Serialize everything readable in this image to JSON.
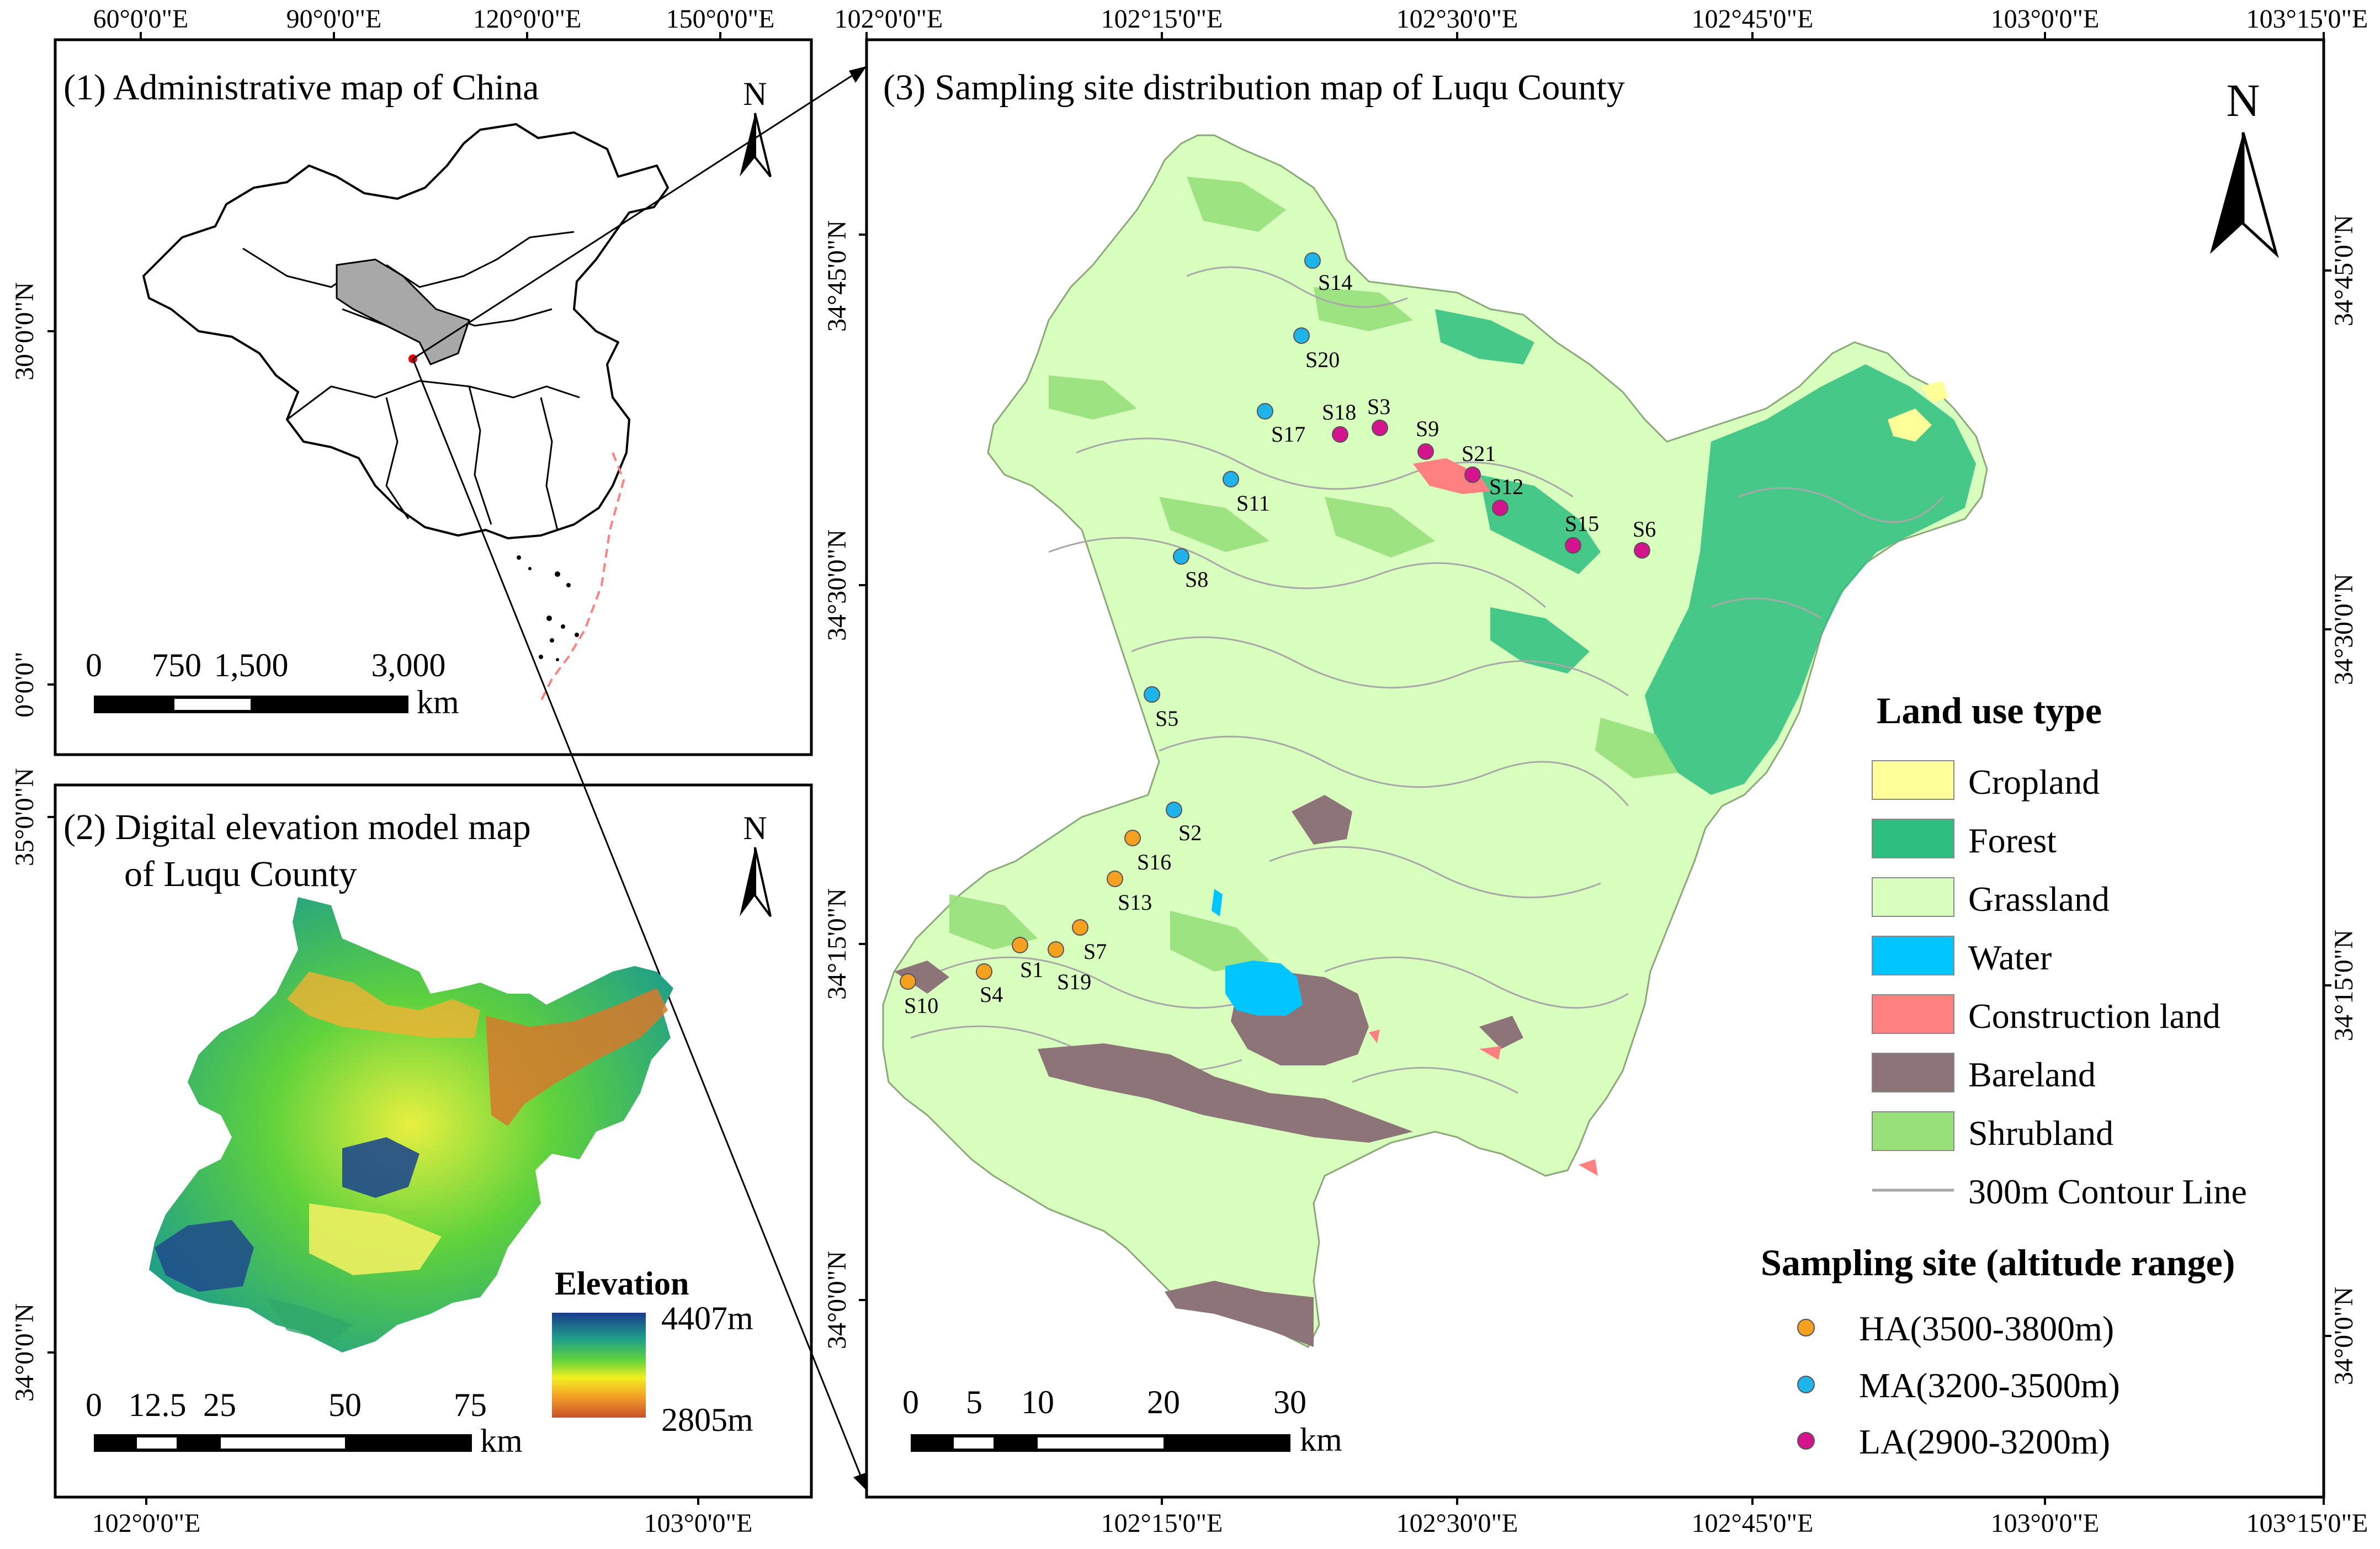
{
  "panel1": {
    "title": "(1) Administrative map of China",
    "top_ticks": [
      "60°0'0\"E",
      "90°0'0\"E",
      "120°0'0\"E",
      "150°0'0\"E"
    ],
    "left_ticks": [
      "30°0'0\"N",
      "0°0'0\""
    ],
    "north": "N",
    "scale_labels": [
      "0",
      "750",
      "1,500",
      "3,000"
    ],
    "scale_unit": "km"
  },
  "panel2": {
    "title_line1": "(2) Digital elevation model map",
    "title_line2": "of Luqu County",
    "left_ticks": [
      "35°0'0\"N",
      "34°0'0\"N"
    ],
    "bottom_ticks": [
      "102°0'0\"E",
      "103°0'0\"E"
    ],
    "north": "N",
    "legend_title": "Elevation",
    "legend_max": "4407m",
    "legend_min": "2805m",
    "scale_labels": [
      "0",
      "12.5",
      "25",
      "50",
      "75"
    ],
    "scale_unit": "km"
  },
  "panel3": {
    "title": "(3) Sampling site distribution map of Luqu County",
    "top_ticks": [
      "102°0'0\"E",
      "102°15'0\"E",
      "102°30'0\"E",
      "102°45'0\"E",
      "103°0'0\"E",
      "103°15'0\"E"
    ],
    "bottom_ticks": [
      "102°15'0\"E",
      "102°30'0\"E",
      "102°45'0\"E",
      "103°0'0\"E",
      "103°15'0\"E"
    ],
    "left_ticks": [
      "34°45'0\"N",
      "34°30'0\"N",
      "34°15'0\"N",
      "34°0'0\"N"
    ],
    "right_ticks": [
      "34°45'0\"N",
      "34°30'0\"N",
      "34°15'0\"N",
      "34°0'0\"N"
    ],
    "north": "N",
    "scale_labels": [
      "0",
      "5",
      "10",
      "20",
      "30"
    ],
    "scale_unit": "km"
  },
  "land_use_legend": {
    "title": "Land use type",
    "items": [
      {
        "label": "Cropland",
        "color": "#ffff99"
      },
      {
        "label": "Forest",
        "color": "#2dbf7f"
      },
      {
        "label": "Grassland",
        "color": "#d8ffbe"
      },
      {
        "label": "Water",
        "color": "#00c5ff"
      },
      {
        "label": "Construction land",
        "color": "#ff8080"
      },
      {
        "label": "Bareland",
        "color": "#8c7478"
      },
      {
        "label": "Shrubland",
        "color": "#98e07a"
      }
    ],
    "contour_label": "300m Contour Line",
    "contour_color": "#a8a8a8"
  },
  "sampling_legend": {
    "title": "Sampling site (altitude range)",
    "items": [
      {
        "label": "HA(3500-3800m)",
        "color": "#f5a01e"
      },
      {
        "label": "MA(3200-3500m)",
        "color": "#1eb4ea"
      },
      {
        "label": "LA(2900-3200m)",
        "color": "#d4148c"
      }
    ]
  },
  "sites": [
    {
      "name": "S14",
      "group": "MA"
    },
    {
      "name": "S20",
      "group": "MA"
    },
    {
      "name": "S17",
      "group": "MA"
    },
    {
      "name": "S18",
      "group": "LA"
    },
    {
      "name": "S3",
      "group": "LA"
    },
    {
      "name": "S9",
      "group": "LA"
    },
    {
      "name": "S21",
      "group": "LA"
    },
    {
      "name": "S12",
      "group": "LA"
    },
    {
      "name": "S11",
      "group": "MA"
    },
    {
      "name": "S15",
      "group": "LA"
    },
    {
      "name": "S6",
      "group": "LA"
    },
    {
      "name": "S8",
      "group": "MA"
    },
    {
      "name": "S5",
      "group": "MA"
    },
    {
      "name": "S2",
      "group": "MA"
    },
    {
      "name": "S16",
      "group": "HA"
    },
    {
      "name": "S13",
      "group": "HA"
    },
    {
      "name": "S7",
      "group": "HA"
    },
    {
      "name": "S1",
      "group": "HA"
    },
    {
      "name": "S19",
      "group": "HA"
    },
    {
      "name": "S4",
      "group": "HA"
    },
    {
      "name": "S10",
      "group": "HA"
    }
  ]
}
